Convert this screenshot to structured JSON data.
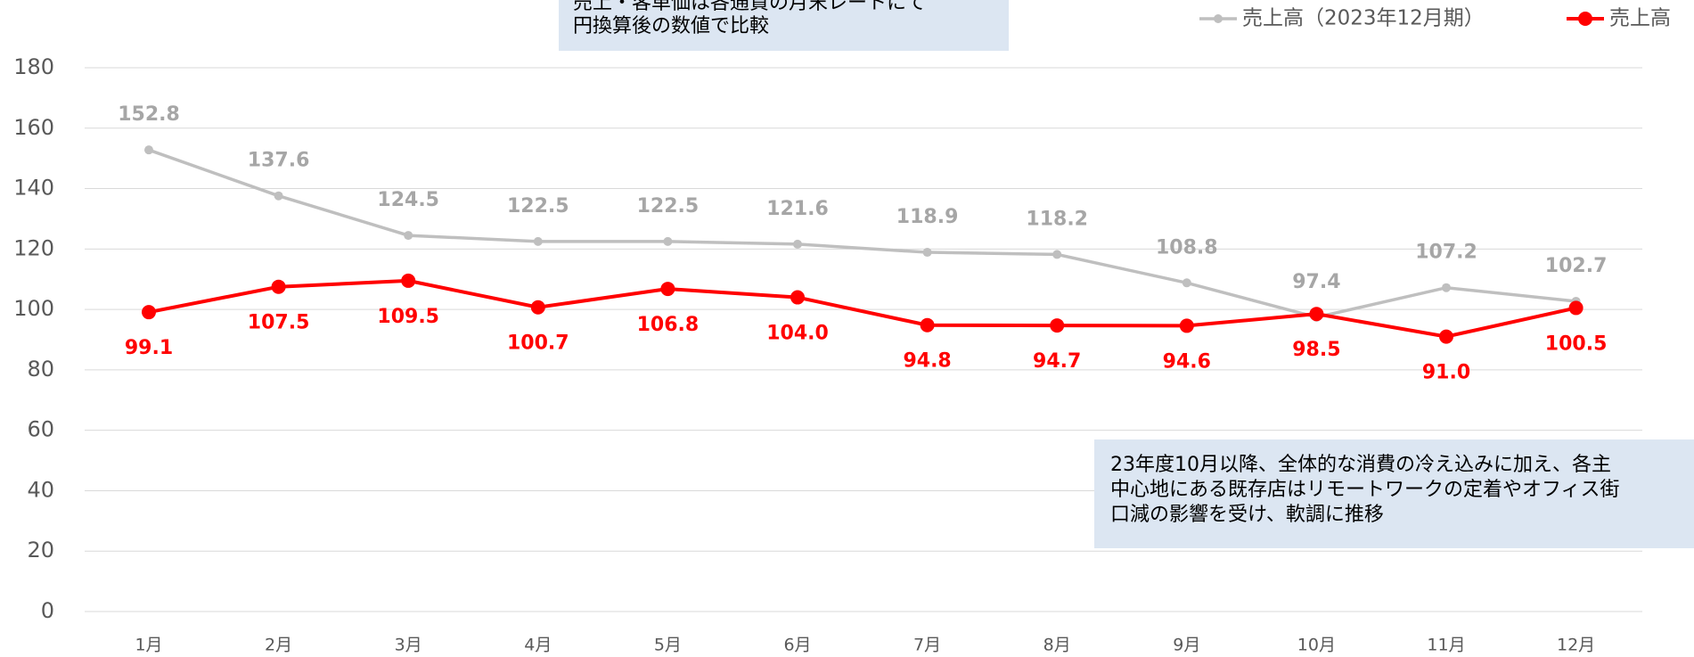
{
  "chart_data": {
    "type": "line",
    "categories": [
      "1月",
      "2月",
      "3月",
      "4月",
      "5月",
      "6月",
      "7月",
      "8月",
      "9月",
      "10月",
      "11月",
      "12月"
    ],
    "series": [
      {
        "name": "売上高（2023年12月期）",
        "color": "#bfbfbf",
        "label_color": "#a6a6a6",
        "label_position": "above",
        "values": [
          152.8,
          137.6,
          124.5,
          122.5,
          122.5,
          121.6,
          118.9,
          118.2,
          108.8,
          97.4,
          107.2,
          102.7
        ],
        "value_labels": [
          "152.8",
          "137.6",
          "124.5",
          "122.5",
          "122.5",
          "121.6",
          "118.9",
          "118.2",
          "108.8",
          "97.4",
          "107.2",
          "102.7"
        ]
      },
      {
        "name": "売上高",
        "color": "#ff0000",
        "label_color": "#ff0000",
        "label_position": "below",
        "values": [
          99.1,
          107.5,
          109.5,
          100.7,
          106.8,
          104.0,
          94.8,
          94.7,
          94.6,
          98.5,
          91.0,
          100.5
        ],
        "value_labels": [
          "99.1",
          "107.5",
          "109.5",
          "100.7",
          "106.8",
          "104.0",
          "94.8",
          "94.7",
          "94.6",
          "98.5",
          "91.0",
          "100.5"
        ]
      }
    ],
    "ylim": [
      0,
      180
    ],
    "yticks": [
      0,
      20,
      40,
      60,
      80,
      100,
      120,
      140,
      160,
      180
    ],
    "grid": true,
    "legend": "top-right",
    "annotations": [
      [
        "売上・客単価は各通貨の月末レートにて",
        "円換算後の数値で比較"
      ],
      [
        "23年度10月以降、全体的な消費の冷え込みに加え、各主",
        "中心地にある既存店はリモートワークの定着やオフィス街",
        "口減の影響を受け、軟調に推移"
      ]
    ]
  }
}
